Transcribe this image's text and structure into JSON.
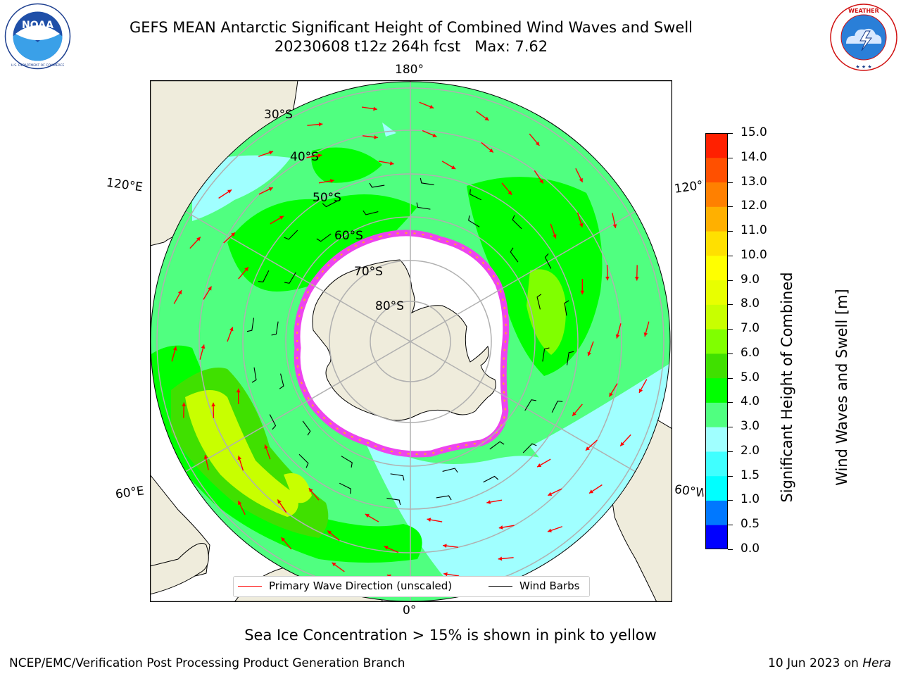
{
  "header": {
    "title_line1": "GEFS MEAN Antarctic Significant Height of Combined Wind Waves and Swell",
    "title_line2": "20230608 t12z 264h fcst   Max: 7.62"
  },
  "logos": {
    "left": {
      "icon": "noaa-logo-icon",
      "text": "NOAA",
      "ring_text": "NATIONAL OCEANIC AND ATMOSPHERIC ADMINISTRATION · U.S. DEPARTMENT OF COMMERCE"
    },
    "right": {
      "icon": "national-weather-service-logo-icon",
      "ring_text": "NATIONAL WEATHER SERVICE"
    }
  },
  "map": {
    "projection": "south-polar-stereographic",
    "longitude_labels": {
      "top": "180°",
      "bottom": "0°",
      "upper_left": "120°E",
      "lower_left": "60°E",
      "upper_right": "120°W",
      "lower_right": "60°W"
    },
    "latitude_labels": [
      "30°S",
      "40°S",
      "50°S",
      "60°S",
      "70°S",
      "80°S"
    ],
    "colors": {
      "land": "#efecdc",
      "ice": "#ffffff",
      "ice_edge": "#ee44ee",
      "ice_edge_inner": "#ffb020",
      "grid": "#b0b0b0",
      "arrow": "#ff0000",
      "barb": "#000000"
    }
  },
  "legend": {
    "items": [
      {
        "label": "Primary Wave Direction (unscaled)",
        "color": "#ff0000"
      },
      {
        "label": "Wind Barbs",
        "color": "#000000"
      }
    ]
  },
  "colorbar": {
    "label_line1": "Significant Height of Combined",
    "label_line2": "Wind Waves and Swell [m]",
    "ticks": [
      "0.0",
      "0.5",
      "1.0",
      "1.5",
      "2.0",
      "3.0",
      "4.0",
      "5.0",
      "6.0",
      "7.0",
      "8.0",
      "9.0",
      "10.0",
      "11.0",
      "12.0",
      "13.0",
      "14.0",
      "15.0"
    ],
    "colors": [
      "#0000ff",
      "#0078ff",
      "#00ffff",
      "#40ffff",
      "#a0ffff",
      "#50ff80",
      "#00ff00",
      "#40e000",
      "#80ff00",
      "#c8ff00",
      "#e8ff00",
      "#ffff00",
      "#ffe000",
      "#ffb000",
      "#ff8000",
      "#ff5000",
      "#ff2000"
    ]
  },
  "note": "Sea Ice Concentration > 15% is shown in pink to yellow",
  "footer": {
    "left": "NCEP/EMC/Verification Post Processing Product Generation Branch",
    "date": "10 Jun 2023 on ",
    "machine": "Hera"
  }
}
